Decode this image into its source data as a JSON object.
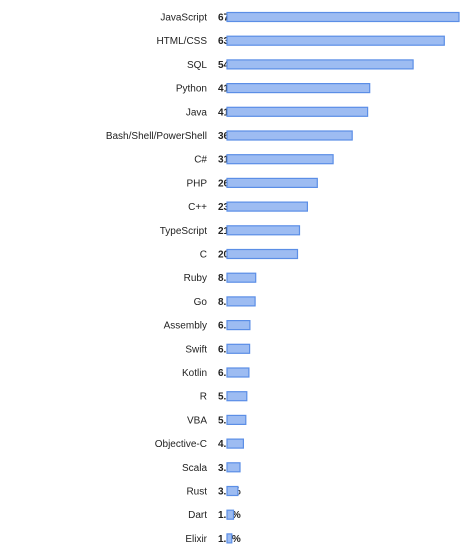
{
  "chart_data": {
    "type": "bar",
    "orientation": "horizontal",
    "categories": [
      "JavaScript",
      "HTML/CSS",
      "SQL",
      "Python",
      "Java",
      "Bash/Shell/PowerShell",
      "C#",
      "PHP",
      "C++",
      "TypeScript",
      "C",
      "Ruby",
      "Go",
      "Assembly",
      "Swift",
      "Kotlin",
      "R",
      "VBA",
      "Objective-C",
      "Scala",
      "Rust",
      "Dart",
      "Elixir"
    ],
    "values": [
      67.8,
      63.5,
      54.4,
      41.7,
      41.1,
      36.6,
      31.0,
      26.4,
      23.5,
      21.2,
      20.6,
      8.4,
      8.2,
      6.7,
      6.6,
      6.4,
      5.8,
      5.5,
      4.8,
      3.8,
      3.2,
      1.9,
      1.4
    ],
    "value_labels": [
      "67.8%",
      "63.5%",
      "54.4%",
      "41.7%",
      "41.1%",
      "36.6%",
      "31.0%",
      "26.4%",
      "23.5%",
      "21.2%",
      "20.6%",
      "8.4%",
      "8.2%",
      "6.7%",
      "6.6%",
      "6.4%",
      "5.8%",
      "5.5%",
      "4.8%",
      "3.8%",
      "3.2%",
      "1.9%",
      "1.4%"
    ],
    "xlim": [
      0,
      67.8
    ],
    "grid": false,
    "legend": "none",
    "colors": {
      "bar_fill": "#9dbcf2",
      "bar_stroke": "#5b8ee6"
    }
  }
}
